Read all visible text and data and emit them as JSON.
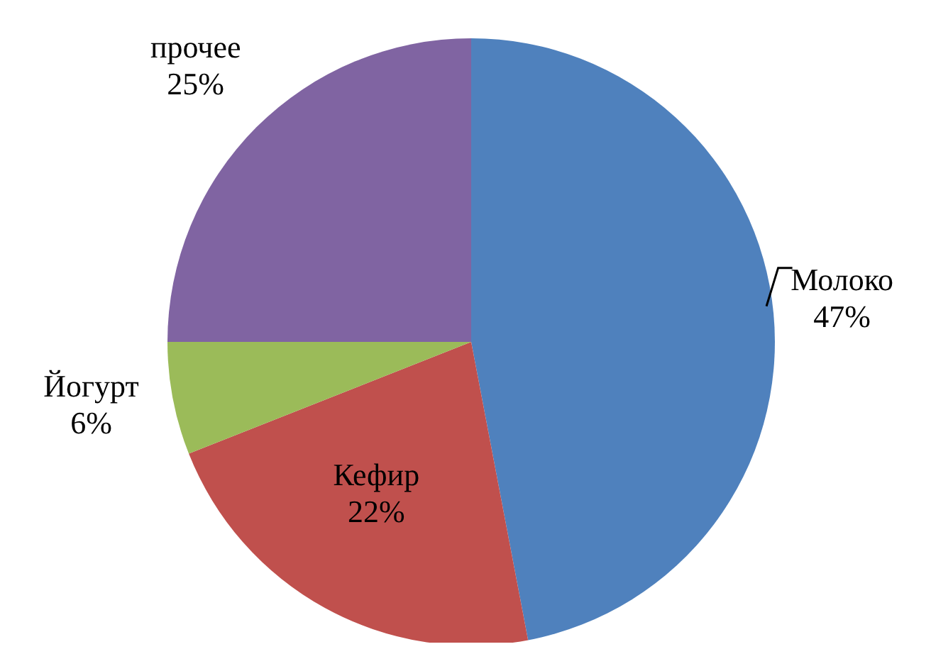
{
  "chart_data": {
    "type": "pie",
    "categories": [
      "Молоко",
      "Кефир",
      "Йогурт",
      "прочее"
    ],
    "values": [
      47,
      22,
      6,
      25
    ],
    "colors": [
      "#4f81bd",
      "#c0504d",
      "#9bbb59",
      "#8064a2"
    ],
    "value_labels": [
      "47%",
      "22%",
      "6%",
      "25%"
    ]
  }
}
